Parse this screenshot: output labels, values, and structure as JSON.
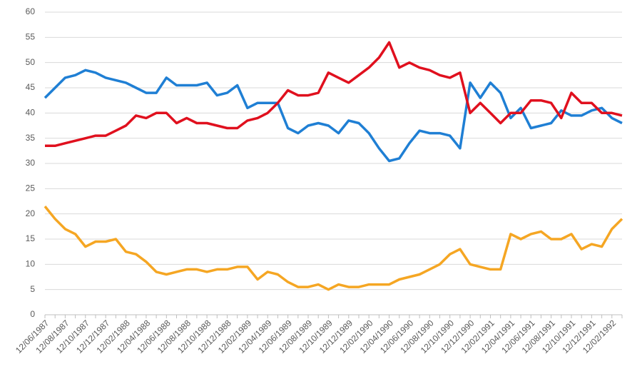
{
  "chart_data": {
    "type": "line",
    "categories": [
      "12/06/1987",
      null,
      "12/08/1987",
      null,
      "12/10/1987",
      null,
      "12/12/1987",
      null,
      "12/02/1988",
      null,
      "12/04/1988",
      null,
      "12/06/1988",
      null,
      "12/08/1988",
      null,
      "12/10/1988",
      null,
      "12/12/1988",
      null,
      "12/02/1989",
      null,
      "12/04/1989",
      null,
      "12/06/1989",
      null,
      "12/08/1989",
      null,
      "12/10/1989",
      null,
      "12/12/1989",
      null,
      "12/02/1990",
      null,
      "12/04/1990",
      null,
      "12/06/1990",
      null,
      "12/08/1990",
      null,
      "12/10/1990",
      null,
      "12/12/1990",
      null,
      "12/02/1991",
      null,
      "12/04/1991",
      null,
      "12/06/1991",
      null,
      "12/08/1991",
      null,
      "12/10/1991",
      null,
      "12/12/1991",
      null,
      "12/02/1992",
      null
    ],
    "series": [
      {
        "color": "#1f7fd4",
        "values": [
          43,
          45,
          47,
          47.5,
          48.5,
          48,
          47,
          46.5,
          46,
          45,
          44,
          44,
          47,
          45.5,
          45.5,
          45.5,
          46,
          43.5,
          44,
          45.5,
          41,
          42,
          42,
          42,
          37,
          36,
          37.5,
          38,
          37.5,
          36,
          38.5,
          38,
          36,
          33,
          30.5,
          31,
          34,
          36.5,
          36,
          36,
          35.5,
          33,
          46,
          43,
          46,
          44,
          39,
          41,
          37,
          37.5,
          38,
          40.5,
          39.5,
          39.5,
          40.5,
          41,
          39,
          38
        ]
      },
      {
        "color": "#e0101e",
        "values": [
          33.5,
          33.5,
          34,
          34.5,
          35,
          35.5,
          35.5,
          36.5,
          37.5,
          39.5,
          39,
          40,
          40,
          38,
          39,
          38,
          38,
          37.5,
          37,
          37,
          38.5,
          39,
          40,
          42,
          44.5,
          43.5,
          43.5,
          44,
          48,
          47,
          46,
          47.5,
          49,
          51,
          54,
          49,
          50,
          49,
          48.5,
          47.5,
          47,
          48,
          40,
          42,
          40,
          38,
          40,
          40,
          42.5,
          42.5,
          42,
          39,
          44,
          42,
          42,
          40,
          40,
          39.5
        ]
      },
      {
        "color": "#f5a623",
        "values": [
          21.5,
          19,
          17,
          16,
          13.5,
          14.5,
          14.5,
          15,
          12.5,
          12,
          10.5,
          8.5,
          8,
          8.5,
          9,
          9,
          8.5,
          9,
          9,
          9.5,
          9.5,
          7,
          8.5,
          8,
          6.5,
          5.5,
          5.5,
          6,
          5,
          6,
          5.5,
          5.5,
          6,
          6,
          6,
          7,
          7.5,
          8,
          9,
          10,
          12,
          13,
          10,
          9.5,
          9,
          9,
          16,
          15,
          16,
          16.5,
          15,
          15,
          16,
          13,
          14,
          13.5,
          17,
          19
        ]
      }
    ],
    "ylim": [
      0,
      60
    ],
    "yticks": [
      0,
      5,
      10,
      15,
      20,
      25,
      30,
      35,
      40,
      45,
      50,
      55,
      60
    ],
    "grid": true
  }
}
